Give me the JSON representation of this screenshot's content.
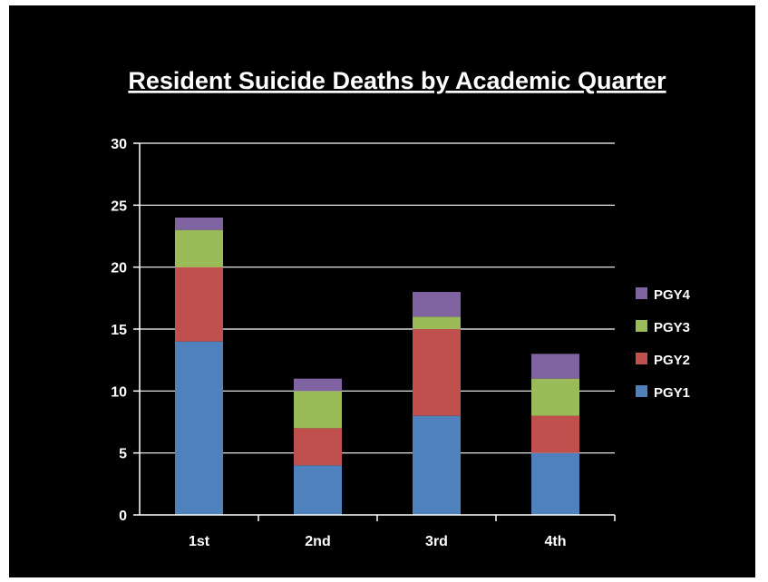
{
  "chart_data": {
    "type": "bar",
    "stacked": true,
    "title": "Resident Suicide Deaths by Academic Quarter",
    "xlabel": "",
    "ylabel": "",
    "categories": [
      "1st",
      "2nd",
      "3rd",
      "4th"
    ],
    "ylim": [
      0,
      30
    ],
    "yticks": [
      0,
      5,
      10,
      15,
      20,
      25,
      30
    ],
    "grid": true,
    "legend_position": "right",
    "series": [
      {
        "name": "PGY1",
        "color": "#4f81bd",
        "values": [
          14,
          4,
          8,
          5
        ]
      },
      {
        "name": "PGY2",
        "color": "#c0504d",
        "values": [
          6,
          3,
          7,
          3
        ]
      },
      {
        "name": "PGY3",
        "color": "#9bbb59",
        "values": [
          3,
          3,
          1,
          3
        ]
      },
      {
        "name": "PGY4",
        "color": "#8064a2",
        "values": [
          1,
          1,
          2,
          2
        ]
      }
    ],
    "colors": {
      "background": "#000000",
      "text": "#ffffff",
      "gridline": "#ffffff"
    }
  }
}
